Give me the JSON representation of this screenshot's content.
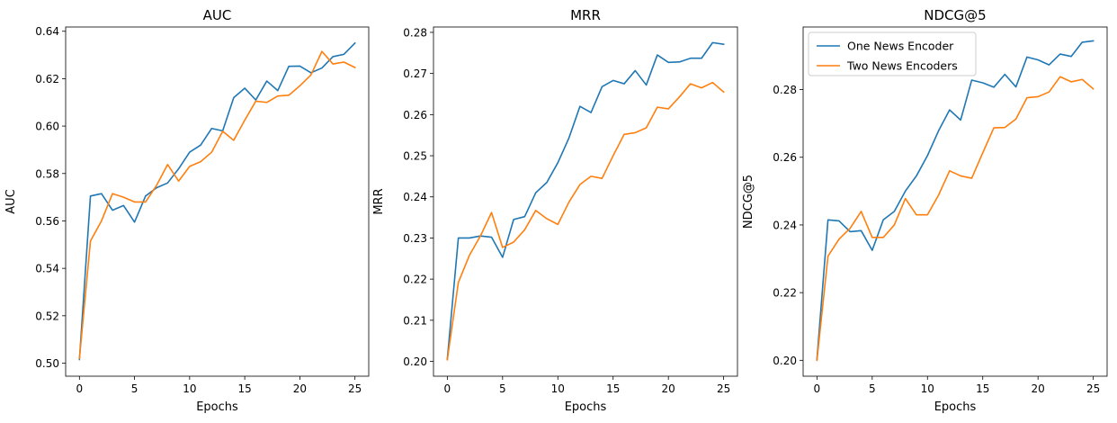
{
  "chart_data": [
    {
      "type": "line",
      "title": "AUC",
      "xlabel": "Epochs",
      "ylabel": "AUC",
      "xlim": [
        -1.25,
        26.25
      ],
      "ylim": [
        0.4945,
        0.6418
      ],
      "xticks": [
        0,
        5,
        10,
        15,
        20,
        25
      ],
      "yticks": [
        0.5,
        0.52,
        0.54,
        0.56,
        0.58,
        0.6,
        0.62,
        0.64
      ],
      "ytick_decimals": 2,
      "legend": null,
      "x": [
        0,
        1,
        2,
        3,
        4,
        5,
        6,
        7,
        8,
        9,
        10,
        11,
        12,
        13,
        14,
        15,
        16,
        17,
        18,
        19,
        20,
        21,
        22,
        23,
        24,
        25
      ],
      "series": [
        {
          "name": "One News Encoder",
          "color": "#1f77b4",
          "values": [
            0.5015,
            0.5705,
            0.5715,
            0.5645,
            0.5665,
            0.5595,
            0.5705,
            0.574,
            0.576,
            0.582,
            0.589,
            0.592,
            0.599,
            0.598,
            0.612,
            0.616,
            0.611,
            0.619,
            0.615,
            0.6252,
            0.6253,
            0.6225,
            0.6245,
            0.6293,
            0.6303,
            0.635
          ]
        },
        {
          "name": "Two News Encoders",
          "color": "#ff7f0e",
          "values": [
            0.502,
            0.5515,
            0.56,
            0.5715,
            0.57,
            0.568,
            0.568,
            0.575,
            0.5838,
            0.5768,
            0.583,
            0.585,
            0.589,
            0.5978,
            0.594,
            0.6025,
            0.6105,
            0.61,
            0.6127,
            0.613,
            0.617,
            0.6215,
            0.6315,
            0.6262,
            0.627,
            0.6247
          ]
        }
      ]
    },
    {
      "type": "line",
      "title": "MRR",
      "xlabel": "Epochs",
      "ylabel": "MRR",
      "xlim": [
        -1.25,
        26.25
      ],
      "ylim": [
        0.1964,
        0.2813
      ],
      "xticks": [
        0,
        5,
        10,
        15,
        20,
        25
      ],
      "yticks": [
        0.2,
        0.21,
        0.22,
        0.23,
        0.24,
        0.25,
        0.26,
        0.27,
        0.28
      ],
      "ytick_decimals": 2,
      "legend": null,
      "x": [
        0,
        1,
        2,
        3,
        4,
        5,
        6,
        7,
        8,
        9,
        10,
        11,
        12,
        13,
        14,
        15,
        16,
        17,
        18,
        19,
        20,
        21,
        22,
        23,
        24,
        25
      ],
      "series": [
        {
          "name": "One News Encoder",
          "color": "#1f77b4",
          "values": [
            0.2005,
            0.23,
            0.23,
            0.2305,
            0.2302,
            0.2253,
            0.2345,
            0.2352,
            0.241,
            0.2435,
            0.2483,
            0.2543,
            0.262,
            0.2605,
            0.2668,
            0.2683,
            0.2675,
            0.2707,
            0.2672,
            0.2745,
            0.2727,
            0.2728,
            0.2737,
            0.2737,
            0.2775,
            0.2771
          ]
        },
        {
          "name": "Two News Encoders",
          "color": "#ff7f0e",
          "values": [
            0.2004,
            0.2192,
            0.2258,
            0.2305,
            0.2362,
            0.2277,
            0.229,
            0.232,
            0.2367,
            0.2347,
            0.2333,
            0.2387,
            0.243,
            0.245,
            0.2445,
            0.25,
            0.2552,
            0.2556,
            0.2568,
            0.2618,
            0.2614,
            0.2643,
            0.2675,
            0.2665,
            0.2678,
            0.2655
          ]
        }
      ]
    },
    {
      "type": "line",
      "title": "NDCG@5",
      "xlabel": "Epochs",
      "ylabel": "NDCG@5",
      "xlim": [
        -1.25,
        26.25
      ],
      "ylim": [
        0.1953,
        0.2985
      ],
      "xticks": [
        0,
        5,
        10,
        15,
        20,
        25
      ],
      "yticks": [
        0.2,
        0.22,
        0.24,
        0.26,
        0.28
      ],
      "ytick_decimals": 2,
      "legend": "top-left",
      "x": [
        0,
        1,
        2,
        3,
        4,
        5,
        6,
        7,
        8,
        9,
        10,
        11,
        12,
        13,
        14,
        15,
        16,
        17,
        18,
        19,
        20,
        21,
        22,
        23,
        24,
        25
      ],
      "series": [
        {
          "name": "One News Encoder",
          "color": "#1f77b4",
          "values": [
            0.2003,
            0.2415,
            0.2412,
            0.238,
            0.2383,
            0.2325,
            0.2415,
            0.244,
            0.25,
            0.2545,
            0.2605,
            0.2678,
            0.274,
            0.271,
            0.2828,
            0.282,
            0.2807,
            0.2845,
            0.2808,
            0.2896,
            0.2888,
            0.2873,
            0.2905,
            0.2898,
            0.294,
            0.2944
          ]
        },
        {
          "name": "Two News Encoders",
          "color": "#ff7f0e",
          "values": [
            0.2,
            0.2308,
            0.2358,
            0.239,
            0.244,
            0.2363,
            0.2363,
            0.24,
            0.2478,
            0.243,
            0.243,
            0.2488,
            0.256,
            0.2545,
            0.2538,
            0.2613,
            0.2687,
            0.2688,
            0.2713,
            0.2776,
            0.2779,
            0.2793,
            0.2838,
            0.2823,
            0.283,
            0.2802
          ]
        }
      ]
    }
  ]
}
